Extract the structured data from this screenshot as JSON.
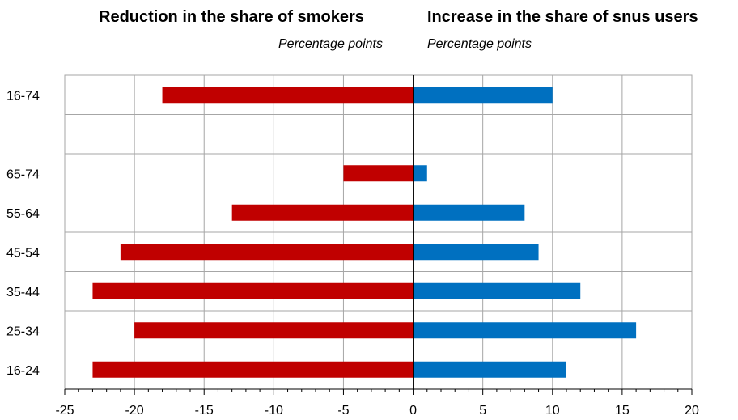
{
  "left_panel": {
    "title": "Reduction in the share of smokers",
    "subtitle": "Percentage points"
  },
  "right_panel": {
    "title": "Increase in the share of snus users",
    "subtitle": "Percentage points"
  },
  "colors": {
    "smokers": "#C00000",
    "snus": "#0070C0",
    "grid": "#A6A6A6",
    "axis": "#000000"
  },
  "chart_data": {
    "type": "bar",
    "orientation": "horizontal",
    "categories": [
      "16-74",
      "",
      "65-74",
      "55-64",
      "45-54",
      "35-44",
      "25-34",
      "16-24"
    ],
    "series": [
      {
        "name": "Reduction in the share of smokers",
        "values": [
          -18,
          null,
          -5,
          -13,
          -21,
          -23,
          -20,
          -23
        ]
      },
      {
        "name": "Increase in the share of snus users",
        "values": [
          10,
          null,
          1,
          8,
          9,
          12,
          16,
          11
        ]
      }
    ],
    "xlim": [
      -25,
      20
    ],
    "xticks": [
      "-25",
      "-20",
      "-15",
      "-10",
      "-5",
      "0",
      "5",
      "10",
      "15",
      "20"
    ],
    "grid": true
  }
}
